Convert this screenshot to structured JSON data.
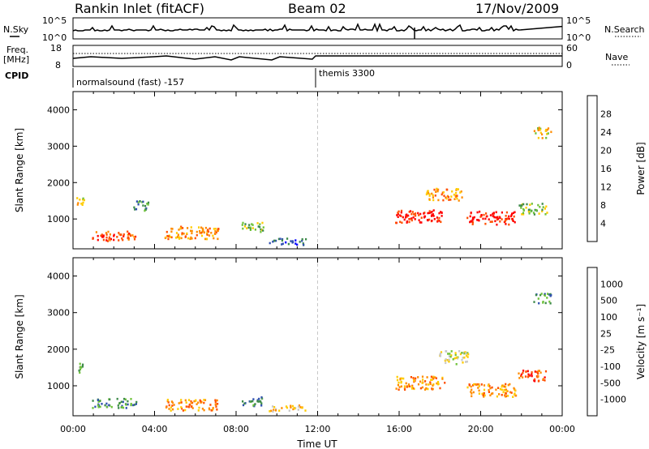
{
  "header": {
    "station": "Rankin Inlet (fitACF)",
    "beam": "Beam 02",
    "date": "17/Nov/2009"
  },
  "side_labels": {
    "nsky": "N.Sky",
    "nsearch": "N.Search",
    "freq": "Freq.",
    "freq_unit": "[MHz]",
    "nave": "Nave",
    "cpid": "CPID"
  },
  "small_ticks": {
    "sky_top": "10^5",
    "sky_bottom": "10^0",
    "search_top": "10^5",
    "search_bottom": "10^0",
    "freq_top": "18",
    "freq_bottom": "8",
    "nave_top": "60",
    "nave_bottom": "0"
  },
  "cpid_labels": {
    "first": "normalsound (fast) -157",
    "second": "themis 3300"
  },
  "colors": {
    "power": [
      "#0000ff",
      "#2f4fb0",
      "#3d8a4a",
      "#6fc23a",
      "#ffcc00",
      "#ff8c00",
      "#ff5000",
      "#ff0000"
    ],
    "velocity": [
      "#ff0000",
      "#ff5000",
      "#ff8c00",
      "#ffcc00",
      "#c8c8c8",
      "#6fc23a",
      "#3d8a4a",
      "#2f4fb0",
      "#2040d0"
    ]
  },
  "chart_data": [
    {
      "type": "heatmap",
      "title": "Power",
      "xlabel": "Time UT",
      "ylabel": "Slant Range [km]",
      "colorbar_label": "Power [dB]",
      "x_ticks": [
        "00:00",
        "04:00",
        "08:00",
        "12:00",
        "16:00",
        "20:00",
        "00:00"
      ],
      "y_ticks": [
        1000,
        2000,
        3000,
        4000
      ],
      "ylim": [
        180,
        4500
      ],
      "xlim_hours": [
        0,
        24
      ],
      "colorbar_ticks": [
        "4",
        "8",
        "12",
        "16",
        "20",
        "24",
        "28"
      ],
      "blobs": [
        {
          "t": 0.3,
          "r": 1500,
          "dt": 0.35,
          "dr": 220,
          "level": 4
        },
        {
          "t": 2.0,
          "r": 550,
          "dt": 1.8,
          "dr": 220,
          "level": 6
        },
        {
          "t": 5.8,
          "r": 650,
          "dt": 2.2,
          "dr": 300,
          "level": 5
        },
        {
          "t": 8.8,
          "r": 800,
          "dt": 0.9,
          "dr": 220,
          "level": 3
        },
        {
          "t": 3.3,
          "r": 1400,
          "dt": 0.6,
          "dr": 250,
          "level": 2
        },
        {
          "t": 10.5,
          "r": 400,
          "dt": 1.5,
          "dr": 150,
          "level": 1
        },
        {
          "t": 17.0,
          "r": 1100,
          "dt": 2.0,
          "dr": 300,
          "level": 7
        },
        {
          "t": 20.5,
          "r": 1050,
          "dt": 2.0,
          "dr": 300,
          "level": 7
        },
        {
          "t": 18.2,
          "r": 1700,
          "dt": 1.5,
          "dr": 280,
          "level": 5
        },
        {
          "t": 22.5,
          "r": 1300,
          "dt": 1.2,
          "dr": 250,
          "level": 3
        },
        {
          "t": 23.0,
          "r": 3400,
          "dt": 0.7,
          "dr": 250,
          "level": 4
        }
      ]
    },
    {
      "type": "heatmap",
      "title": "Velocity",
      "xlabel": "Time UT",
      "ylabel": "Slant Range [km]",
      "colorbar_label": "Velocity [m s⁻¹]",
      "x_ticks": [
        "00:00",
        "04:00",
        "08:00",
        "12:00",
        "16:00",
        "20:00",
        "00:00"
      ],
      "y_ticks": [
        1000,
        2000,
        3000,
        4000
      ],
      "ylim": [
        180,
        4500
      ],
      "xlim_hours": [
        0,
        24
      ],
      "colorbar_ticks": [
        "1000",
        "500",
        "100",
        "25",
        "-25",
        "-100",
        "-500",
        "-1000"
      ],
      "blobs": [
        {
          "t": 0.3,
          "r": 1500,
          "dt": 0.35,
          "dr": 220,
          "level": 5
        },
        {
          "t": 2.0,
          "r": 550,
          "dt": 1.8,
          "dr": 220,
          "level": 6
        },
        {
          "t": 5.8,
          "r": 500,
          "dt": 2.2,
          "dr": 250,
          "level": 2
        },
        {
          "t": 8.8,
          "r": 600,
          "dt": 0.9,
          "dr": 220,
          "level": 6
        },
        {
          "t": 10.5,
          "r": 400,
          "dt": 1.5,
          "dr": 150,
          "level": 3
        },
        {
          "t": 17.0,
          "r": 1100,
          "dt": 2.0,
          "dr": 300,
          "level": 2
        },
        {
          "t": 20.5,
          "r": 900,
          "dt": 2.0,
          "dr": 300,
          "level": 2
        },
        {
          "t": 18.6,
          "r": 1800,
          "dt": 1.3,
          "dr": 300,
          "level": 4
        },
        {
          "t": 22.5,
          "r": 1300,
          "dt": 1.2,
          "dr": 250,
          "level": 1
        },
        {
          "t": 23.0,
          "r": 3400,
          "dt": 0.7,
          "dr": 250,
          "level": 6
        }
      ]
    }
  ]
}
